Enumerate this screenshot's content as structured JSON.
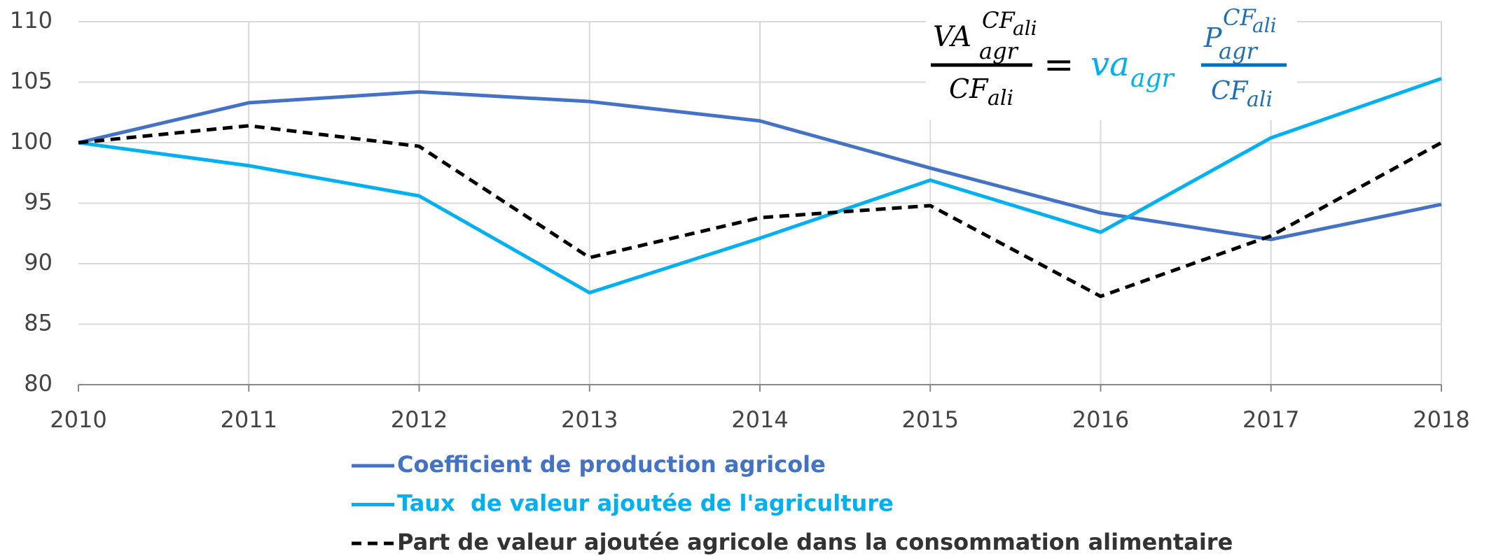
{
  "chart_data": {
    "type": "line",
    "categories": [
      "2010",
      "2011",
      "2012",
      "2013",
      "2014",
      "2015",
      "2016",
      "2017",
      "2018"
    ],
    "ylim": [
      80,
      110
    ],
    "yticks": [
      80,
      85,
      90,
      95,
      100,
      105,
      110
    ],
    "grid": true,
    "series": [
      {
        "name": "Coefficient de production agricole",
        "color": "#4472c4",
        "dash": false,
        "values": [
          100,
          103.3,
          104.2,
          103.4,
          101.8,
          97.9,
          94.2,
          92.0,
          94.9
        ]
      },
      {
        "name": "Taux  de valeur ajoutée de l'agriculture",
        "color": "#00b0f0",
        "dash": false,
        "values": [
          100,
          98.1,
          95.6,
          87.6,
          92.1,
          96.9,
          92.6,
          100.4,
          105.3
        ]
      },
      {
        "name": "Part de valeur ajoutée agricole dans la consommation alimentaire",
        "color": "#000000",
        "dash": true,
        "values": [
          100,
          101.4,
          99.7,
          90.5,
          93.8,
          94.8,
          87.3,
          92.3,
          100.0
        ]
      }
    ],
    "annotation": {
      "lhs_numerator": {
        "base": "VA",
        "sub": "agr",
        "sup": "CF",
        "supsub": "ali"
      },
      "lhs_denominator": {
        "base": "CF",
        "sub": "ali"
      },
      "equals": "=",
      "rhs_factor": {
        "base": "va",
        "sub": "agr"
      },
      "rhs_numerator": {
        "base": "P",
        "sub": "agr",
        "sup": "CF",
        "supsub": "ali"
      },
      "rhs_denominator": {
        "base": "CF",
        "sub": "ali"
      }
    }
  }
}
